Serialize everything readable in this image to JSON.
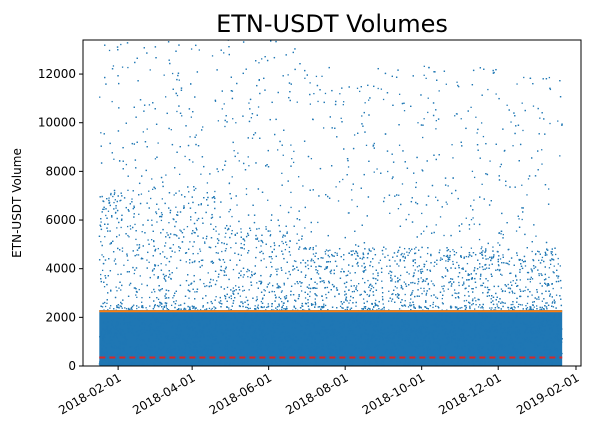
{
  "chart_data": {
    "type": "scatter",
    "title": "ETN-USDT Volumes",
    "xlabel": "",
    "ylabel": "ETN-USDT Volume",
    "xlim": [
      "2018-01-04",
      "2019-02-05"
    ],
    "ylim": [
      0,
      13400
    ],
    "x_ticks": [
      "2018-02-01",
      "2018-04-01",
      "2018-06-01",
      "2018-08-01",
      "2018-10-01",
      "2018-12-01",
      "2019-02-01"
    ],
    "y_ticks": [
      0,
      2000,
      4000,
      6000,
      8000,
      10000,
      12000
    ],
    "grid": false,
    "legend": "none",
    "x_range": [
      "2018-01-17",
      "2019-01-21"
    ],
    "series": [
      {
        "kind": "points",
        "color": "#1f77b4",
        "note_density": "dense, heaviest below ~4000, sparse to 13400"
      },
      {
        "kind": "hline",
        "y": 2250,
        "color": "#ff7f0e",
        "style": "solid"
      },
      {
        "kind": "hline",
        "y": 350,
        "color": "#d62728",
        "style": "dashed"
      }
    ],
    "point_color": "#1f77b4",
    "mean_line": {
      "y": 2250,
      "color": "#ff7f0e"
    },
    "median_line": {
      "y": 350,
      "color": "#d62728"
    }
  }
}
